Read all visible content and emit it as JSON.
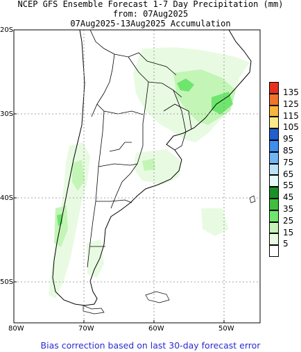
{
  "header": {
    "title": "NCEP GFS Ensemble Forecast 1-7 Day Precipitation (mm)",
    "from": "from: 07Aug2025",
    "range": "07Aug2025-13Aug2025 Accumulation"
  },
  "axes": {
    "lat_labels": [
      "20S",
      "30S",
      "40S",
      "50S"
    ],
    "lon_labels": [
      "80W",
      "70W",
      "60W",
      "50W"
    ]
  },
  "legend": {
    "labels": [
      "135",
      "125",
      "115",
      "105",
      "95",
      "85",
      "75",
      "65",
      "55",
      "45",
      "35",
      "25",
      "15",
      "5"
    ],
    "colors": [
      "#e8301c",
      "#f3732b",
      "#f9b53c",
      "#fce98a",
      "#1f5fd0",
      "#3c8ef0",
      "#6fb6f4",
      "#bde2f6",
      "#e6faf8",
      "#1b8f2a",
      "#3fbf3b",
      "#6ee66e",
      "#c3f5b6",
      "#e8fbe2",
      "#ffffff"
    ]
  },
  "map": {
    "projection": "lat-lon",
    "lat_range": [
      "20S",
      "55S"
    ],
    "lon_range": [
      "80W",
      "45W"
    ],
    "grid": "dotted at 10 degree intervals"
  },
  "footnote": "Bias correction based on last 30-day forecast error"
}
